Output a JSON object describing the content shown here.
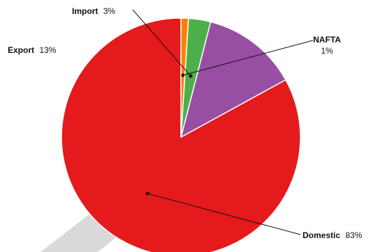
{
  "chart_data": {
    "type": "pie",
    "title": "",
    "slices": [
      {
        "label": "Domestic",
        "value": 83,
        "value_label": "83%",
        "color": "#e41a1c"
      },
      {
        "label": "Export",
        "value": 13,
        "value_label": "13%",
        "color": "#984ea3"
      },
      {
        "label": "Import",
        "value": 3,
        "value_label": "3%",
        "color": "#4daf4a"
      },
      {
        "label": "NAFTA",
        "value": 1,
        "value_label": "1%",
        "color": "#ff7f00"
      }
    ],
    "start_angle_deg": 0,
    "direction": "counterclockwise",
    "shadow_color": "#d9d9d9",
    "legend": "none"
  }
}
